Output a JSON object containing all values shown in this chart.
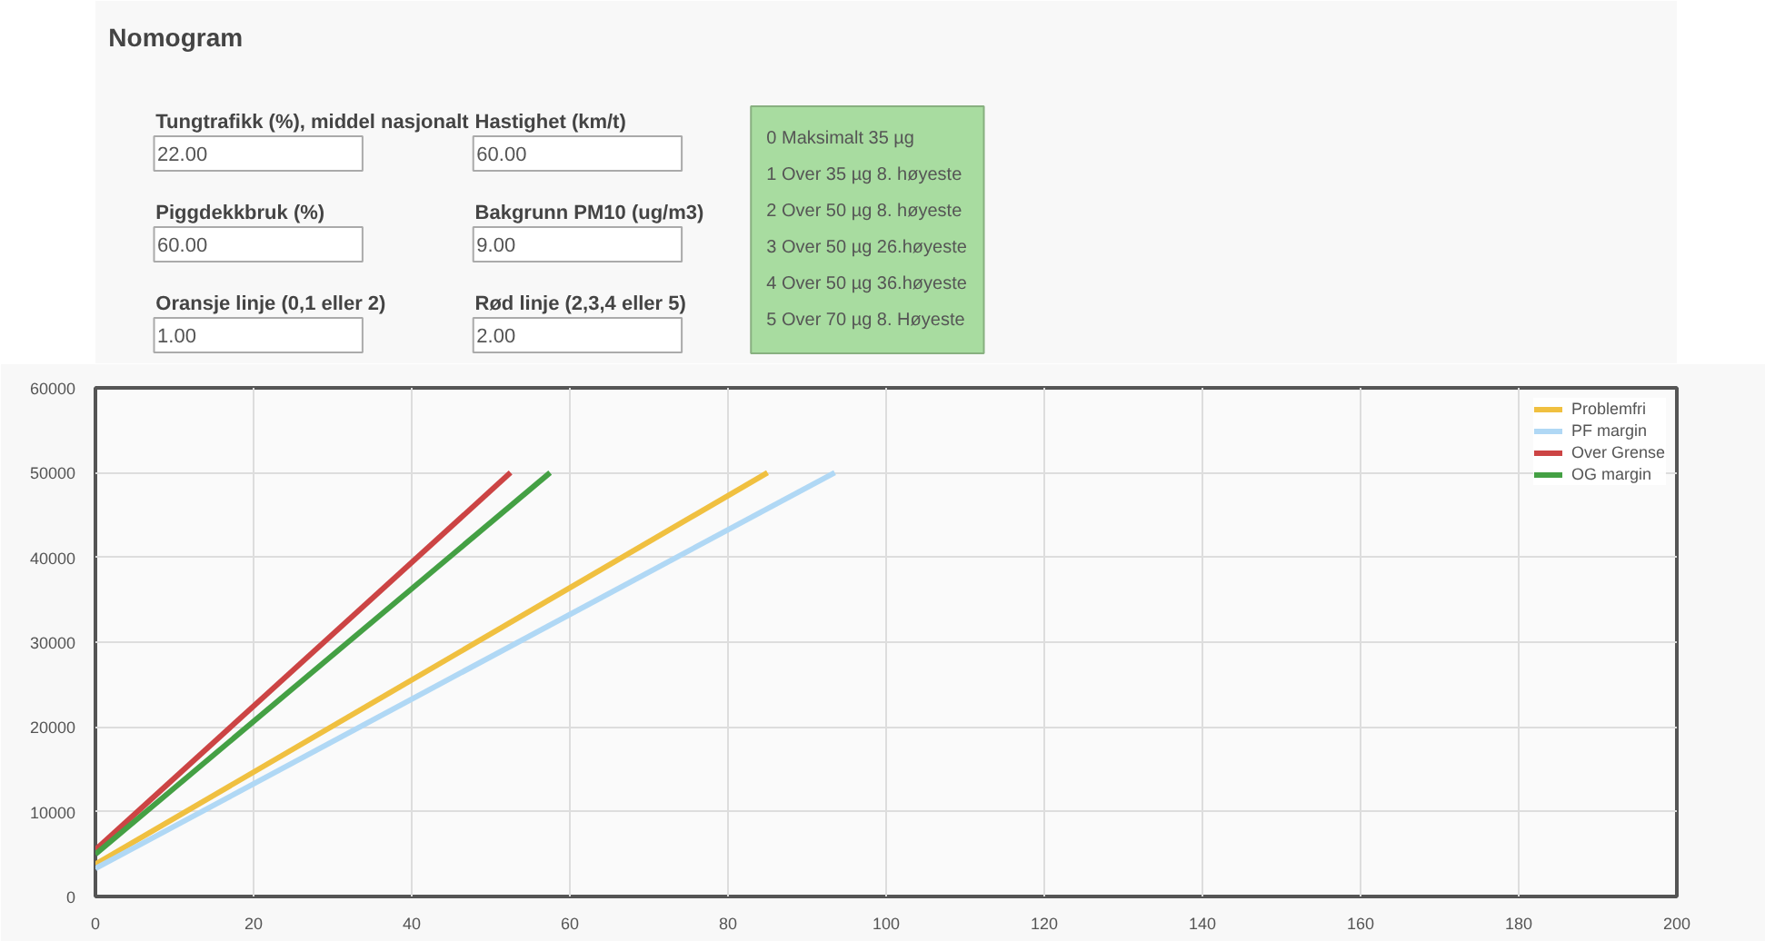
{
  "chart_data": {
    "type": "line",
    "title": "Nomogram",
    "annotations": [
      "Tungtrafikk (%), middel nasjonalt",
      "22.00",
      "Hastighet (km/t)",
      "60.00",
      "Piggdekkbruk (%)",
      "60.00",
      "Bakgrunn PM10 (ug/m3)",
      "9.00",
      "Oransje linje (0,1 eller 2)",
      "1.00",
      "Rød linje (2,3,4 eller 5)",
      "2.00",
      "0  Maksimalt 35 µg",
      "1  Over 35 µg 8. høyeste",
      "2  Over 50 µg 8. høyeste",
      "3  Over 50 µg 26.høyeste",
      "4  Over 50 µg 36.høyeste",
      "5  Over 70 µg 8. Høyeste"
    ],
    "series": [
      {
        "name": "Problemfri",
        "color": "#f0c040",
        "x": [
          0,
          85
        ],
        "values": [
          3800,
          50000
        ]
      },
      {
        "name": "PF margin",
        "color": "#b0d8f5",
        "x": [
          0,
          93.5
        ],
        "values": [
          3300,
          50000
        ]
      },
      {
        "name": "Over Grense",
        "color": "#cc4444",
        "x": [
          0,
          52.5
        ],
        "values": [
          5500,
          50000
        ]
      },
      {
        "name": "OG margin",
        "color": "#44a044",
        "x": [
          0,
          57.5
        ],
        "values": [
          5000,
          50000
        ]
      }
    ],
    "xlim": [
      0,
      200
    ],
    "xticks": [
      0,
      20,
      40,
      60,
      80,
      100,
      120,
      140,
      160,
      180,
      200
    ],
    "ylim": [
      0,
      60000
    ],
    "yticks": [
      0,
      10000,
      20000,
      30000,
      40000,
      50000,
      60000
    ],
    "grid": true,
    "legend": "top right",
    "line_style": "solid"
  }
}
